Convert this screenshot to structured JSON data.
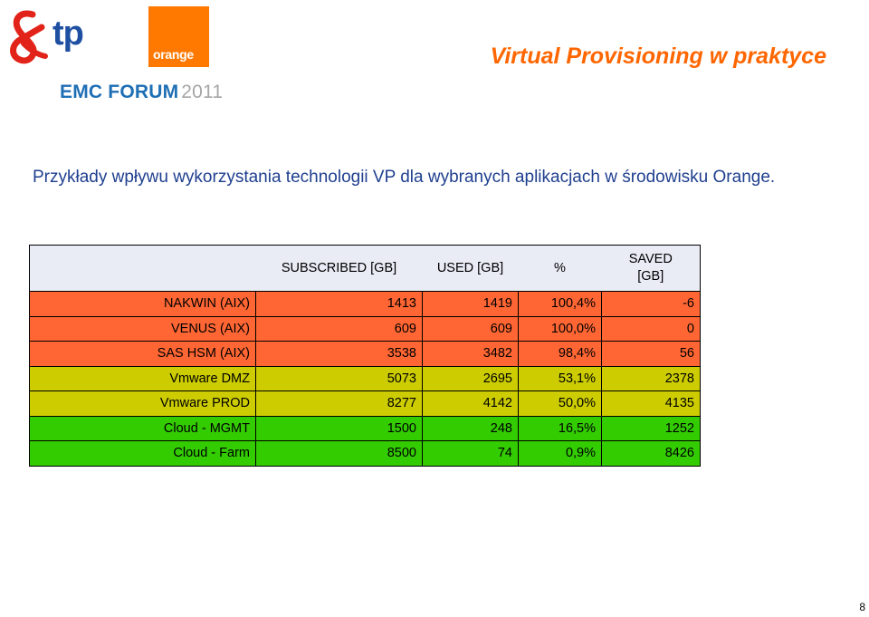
{
  "logos": {
    "tp_text": "tp",
    "orange_text": "orange",
    "emc_forum_name": "EMC FORUM",
    "emc_forum_year": "2011",
    "colors": {
      "tp_red": "#e2231a",
      "tp_blue": "#1e4fa1",
      "orange": "#ff7900",
      "emc_blue": "#1f6fb5"
    }
  },
  "title": "Virtual Provisioning w praktyce",
  "intro_text": "Przykłady wpływu wykorzystania technologii VP dla  wybranych aplikacjach w środowisku Orange.",
  "table": {
    "headers": [
      "",
      "SUBSCRIBED [GB]",
      "USED [GB]",
      "%",
      "SAVED [GB]"
    ],
    "rows": [
      {
        "name": "NAKWIN (AIX)",
        "subscribed": "1413",
        "used": "1419",
        "pct": "100,4%",
        "saved": "-6",
        "color": "#ff6633"
      },
      {
        "name": "VENUS (AIX)",
        "subscribed": "609",
        "used": "609",
        "pct": "100,0%",
        "saved": "0",
        "color": "#ff6633"
      },
      {
        "name": "SAS HSM (AIX)",
        "subscribed": "3538",
        "used": "3482",
        "pct": "98,4%",
        "saved": "56",
        "color": "#ff6633"
      },
      {
        "name": "Vmware DMZ",
        "subscribed": "5073",
        "used": "2695",
        "pct": "53,1%",
        "saved": "2378",
        "color": "#cccc00"
      },
      {
        "name": "Vmware PROD",
        "subscribed": "8277",
        "used": "4142",
        "pct": "50,0%",
        "saved": "4135",
        "color": "#cccc00"
      },
      {
        "name": "Cloud - MGMT",
        "subscribed": "1500",
        "used": "248",
        "pct": "16,5%",
        "saved": "1252",
        "color": "#33cc00"
      },
      {
        "name": "Cloud - Farm",
        "subscribed": "8500",
        "used": "74",
        "pct": "0,9%",
        "saved": "8426",
        "color": "#33cc00"
      }
    ]
  },
  "page_number": "8"
}
